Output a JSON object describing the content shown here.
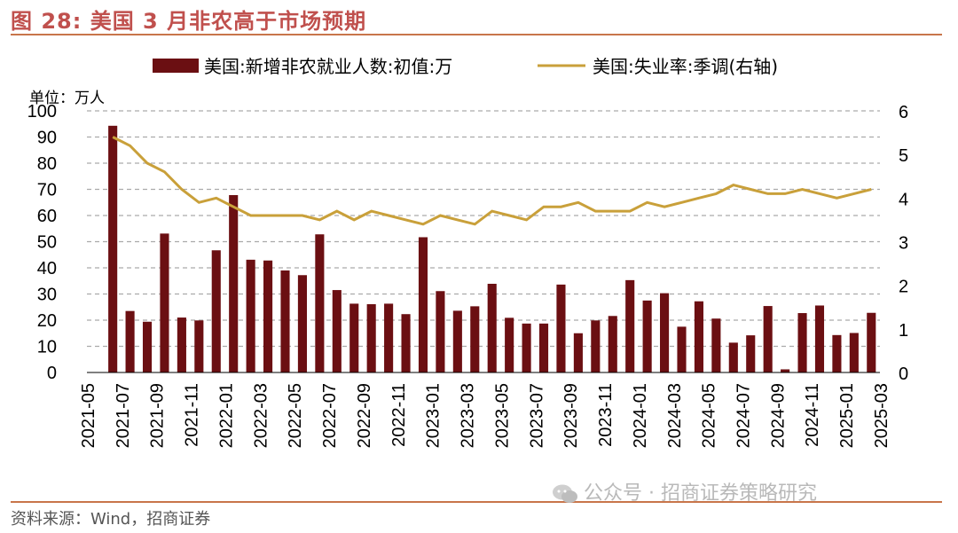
{
  "header": {
    "title": "图 28:  美国 3 月非农高于市场预期"
  },
  "footer": {
    "source": "资料来源：Wind，招商证券",
    "watermark": "公众号 · 招商证券策略研究"
  },
  "colors": {
    "bar": "#6b0f12",
    "line": "#c9a03a",
    "accent": "#c0504d",
    "grid": "#aaaaaa"
  },
  "chart_data": {
    "type": "bar+line",
    "unit_label": "单位：万人",
    "legend": {
      "placement": "top",
      "bar": "美国:新增非农就业人数:初值:万",
      "line": "美国:失业率:季调(右轴)"
    },
    "left_axis": {
      "ylim": [
        0,
        100
      ],
      "ticks": [
        "0",
        "10",
        "20",
        "30",
        "40",
        "50",
        "60",
        "70",
        "80",
        "90",
        "100"
      ]
    },
    "right_axis": {
      "ylim": [
        0,
        6
      ],
      "ticks": [
        "0",
        "1",
        "2",
        "3",
        "4",
        "5",
        "6"
      ]
    },
    "grid": true,
    "xtick_labels": [
      "2021-05",
      "2021-07",
      "2021-09",
      "2021-11",
      "2022-01",
      "2022-03",
      "2022-05",
      "2022-07",
      "2022-09",
      "2022-11",
      "2023-01",
      "2023-03",
      "2023-05",
      "2023-07",
      "2023-09",
      "2023-11",
      "2024-01",
      "2024-03",
      "2024-05",
      "2024-07",
      "2024-09",
      "2024-11",
      "2025-01",
      "2025-03"
    ],
    "categories": [
      "2021-06",
      "2021-07",
      "2021-08",
      "2021-09",
      "2021-10",
      "2021-11",
      "2021-12",
      "2022-01",
      "2022-02",
      "2022-03",
      "2022-04",
      "2022-05",
      "2022-06",
      "2022-07",
      "2022-08",
      "2022-09",
      "2022-10",
      "2022-11",
      "2022-12",
      "2023-01",
      "2023-02",
      "2023-03",
      "2023-04",
      "2023-05",
      "2023-06",
      "2023-07",
      "2023-08",
      "2023-09",
      "2023-10",
      "2023-11",
      "2023-12",
      "2024-01",
      "2024-02",
      "2024-03",
      "2024-04",
      "2024-05",
      "2024-06",
      "2024-07",
      "2024-08",
      "2024-09",
      "2024-10",
      "2024-11",
      "2024-12",
      "2025-01",
      "2025-02",
      "2025-03"
    ],
    "series": [
      {
        "name": "美国:新增非农就业人数:初值:万",
        "type": "bar",
        "axis": "left",
        "values": [
          null,
          94.3,
          23.5,
          19.4,
          53.1,
          21.0,
          19.9,
          46.7,
          67.8,
          43.1,
          42.8,
          39.0,
          37.2,
          52.8,
          31.5,
          26.3,
          26.1,
          26.3,
          22.3,
          51.7,
          31.1,
          23.6,
          25.3,
          33.9,
          20.9,
          18.7,
          18.7,
          33.6,
          15.0,
          19.9,
          21.6,
          35.3,
          27.5,
          30.3,
          17.5,
          27.2,
          20.6,
          11.4,
          14.2,
          25.4,
          1.2,
          22.7,
          25.6,
          14.3,
          15.1,
          22.8
        ]
      },
      {
        "name": "美国:失业率:季调(右轴)",
        "type": "line",
        "axis": "right",
        "values": [
          null,
          5.4,
          5.2,
          4.8,
          4.6,
          4.2,
          3.9,
          4.0,
          3.8,
          3.6,
          3.6,
          3.6,
          3.6,
          3.5,
          3.7,
          3.5,
          3.7,
          3.6,
          3.5,
          3.4,
          3.6,
          3.5,
          3.4,
          3.7,
          3.6,
          3.5,
          3.8,
          3.8,
          3.9,
          3.7,
          3.7,
          3.7,
          3.9,
          3.8,
          3.9,
          4.0,
          4.1,
          4.3,
          4.2,
          4.1,
          4.1,
          4.2,
          4.1,
          4.0,
          4.1,
          4.2
        ]
      }
    ]
  }
}
